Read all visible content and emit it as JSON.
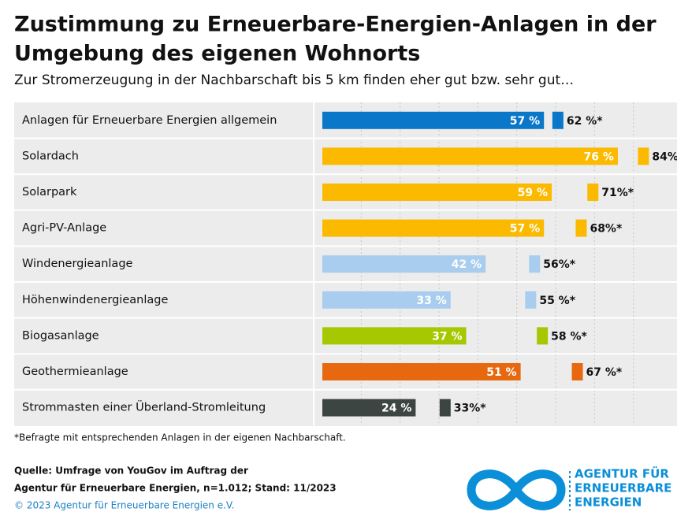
{
  "chart_data": {
    "type": "bar",
    "title": "Zustimmung zu Erneuerbare-Energien-Anlagen in der",
    "title_line2": "Umgebung des eigenen Wohnorts",
    "subtitle": "Zur Stromerzeugung in der Nachbarschaft bis 5 km finden eher gut bzw. sehr gut…",
    "categories": [
      "Anlagen für Erneuerbare Energien allgemein",
      "Solardach",
      "Solarpark",
      "Agri-PV-Anlage",
      "Windenergieanlage",
      "Höhenwindenergieanlage",
      "Biogasanlage",
      "Geothermieanlage",
      "Strommasten einer Überland-Stromleitung"
    ],
    "colors": [
      "#0a77c8",
      "#fbba00",
      "#fbba00",
      "#fbba00",
      "#a8cdee",
      "#a8cdee",
      "#a5c800",
      "#e8680f",
      "#3d4543"
    ],
    "series": [
      {
        "values": [
          57,
          76,
          59,
          57,
          42,
          33,
          37,
          51,
          24
        ],
        "value_labels": [
          "57 %",
          "76 %",
          "59 %",
          "57 %",
          "42 %",
          "33 %",
          "37 %",
          "51 %",
          "24 %"
        ]
      },
      {
        "values": [
          62,
          84,
          71,
          68,
          56,
          55,
          58,
          67,
          33
        ],
        "value_labels": [
          "62 %*",
          "84%",
          "71%*",
          "68%*",
          "56%*",
          "55 %*",
          "58 %*",
          "67 %*",
          "33%*"
        ]
      }
    ],
    "xlim": [
      0,
      90
    ],
    "xticks": [
      10,
      20,
      30,
      40,
      50,
      60,
      70,
      80
    ],
    "grid": true,
    "footnote": "*Befragte mit entsprechenden Anlagen in der eigenen Nachbarschaft.",
    "source_line1": "Quelle: Umfrage von YouGov im Auftrag der",
    "source_line2": "Agentur für Erneuerbare Energien, n=1.012; Stand: 11/2023",
    "copyright": "© 2023 Agentur für Erneuerbare Energien e.V.",
    "logo_lines": [
      "AGENTUR FÜR",
      "ERNEUERBARE",
      "ENERGIEN"
    ]
  }
}
